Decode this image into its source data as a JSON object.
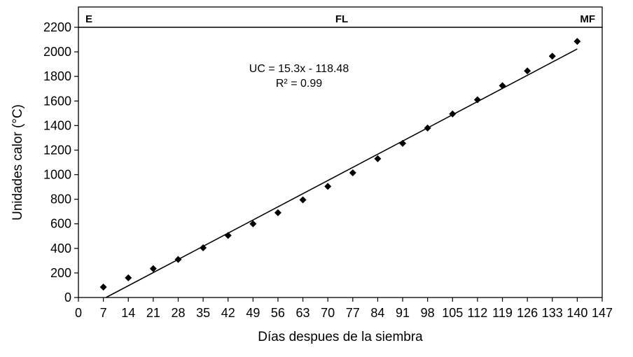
{
  "chart_data": {
    "type": "scatter",
    "xlabel": "Días despues de la siembra",
    "ylabel": "Unidades calor (°C)",
    "xlim": [
      0,
      147
    ],
    "ylim": [
      0,
      2200
    ],
    "xticks": [
      0,
      7,
      14,
      21,
      28,
      35,
      42,
      49,
      56,
      63,
      70,
      77,
      84,
      91,
      98,
      105,
      112,
      119,
      126,
      133,
      140,
      147
    ],
    "yticks": [
      0,
      200,
      400,
      600,
      800,
      1000,
      1200,
      1400,
      1600,
      1800,
      2000,
      2200
    ],
    "grid": false,
    "series": [
      {
        "marker": "diamond",
        "color": "#000000",
        "x": [
          7,
          14,
          21,
          28,
          35,
          42,
          49,
          56,
          63,
          70,
          77,
          84,
          91,
          98,
          105,
          112,
          119,
          126,
          133,
          140
        ],
        "y": [
          85,
          160,
          235,
          310,
          405,
          505,
          600,
          690,
          795,
          905,
          1015,
          1130,
          1255,
          1380,
          1495,
          1610,
          1725,
          1845,
          1965,
          2085
        ]
      }
    ],
    "trendline": {
      "slope": 15.3,
      "intercept": -118.48,
      "x_range": [
        7.74,
        140
      ]
    },
    "annotations": {
      "equation": "UC = 15.3x - 118.48",
      "r2": "R² = 0.99"
    },
    "stages": [
      {
        "label": "E",
        "align": "left"
      },
      {
        "label": "FL",
        "align": "center"
      },
      {
        "label": "MF",
        "align": "right"
      }
    ]
  }
}
